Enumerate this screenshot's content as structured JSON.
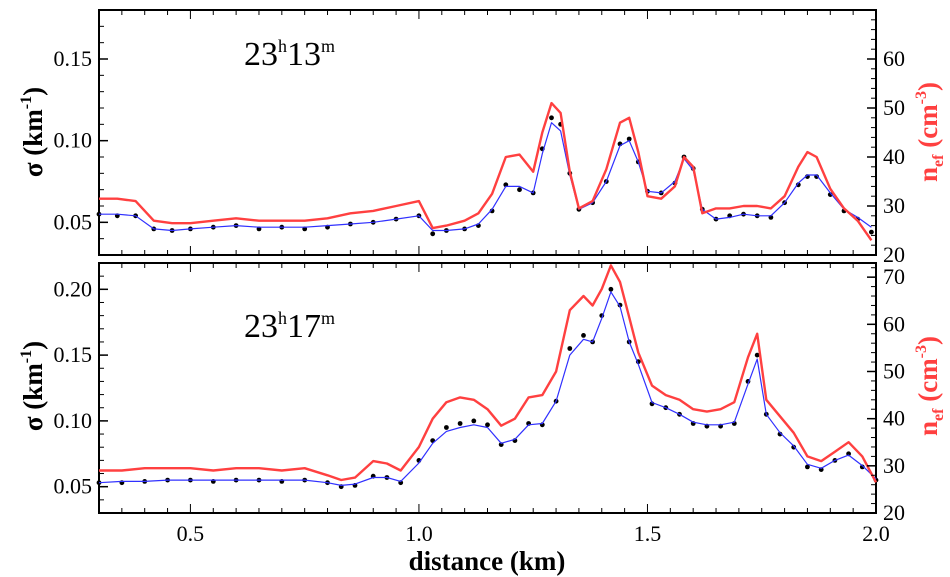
{
  "chart_data": [
    {
      "type": "line",
      "panel": "top",
      "annotation": {
        "hours": "23",
        "h": "h",
        "minutes": "13",
        "m": "m"
      },
      "xlim": [
        0.3,
        2.0
      ],
      "ylim_left": [
        0.03,
        0.18
      ],
      "ylim_right": [
        20,
        70
      ],
      "left_ticks": [
        "0.05",
        "0.10",
        "0.15"
      ],
      "right_ticks": [
        "20",
        "30",
        "40",
        "50",
        "60"
      ],
      "ylabel_left": {
        "symbol": "σ",
        "unit": "(km",
        "exp": "-1",
        "close": ")"
      },
      "ylabel_right": {
        "symbol": "n",
        "sub": "ef",
        "unit": "(cm",
        "exp": "-3",
        "close": ")"
      },
      "series": [
        {
          "role": "points",
          "color": "#000000",
          "x": [
            0.3,
            0.34,
            0.38,
            0.42,
            0.46,
            0.5,
            0.55,
            0.6,
            0.65,
            0.7,
            0.75,
            0.8,
            0.85,
            0.9,
            0.95,
            1.0,
            1.03,
            1.06,
            1.1,
            1.13,
            1.16,
            1.19,
            1.22,
            1.25,
            1.27,
            1.29,
            1.31,
            1.33,
            1.35,
            1.38,
            1.41,
            1.44,
            1.46,
            1.48,
            1.5,
            1.53,
            1.56,
            1.58,
            1.6,
            1.62,
            1.65,
            1.68,
            1.71,
            1.74,
            1.77,
            1.8,
            1.83,
            1.85,
            1.87,
            1.9,
            1.93,
            1.96,
            1.99
          ],
          "y": [
            0.055,
            0.054,
            0.054,
            0.046,
            0.045,
            0.046,
            0.047,
            0.048,
            0.046,
            0.047,
            0.046,
            0.047,
            0.049,
            0.05,
            0.052,
            0.054,
            0.043,
            0.045,
            0.046,
            0.048,
            0.057,
            0.073,
            0.07,
            0.068,
            0.095,
            0.114,
            0.11,
            0.08,
            0.058,
            0.062,
            0.075,
            0.098,
            0.101,
            0.087,
            0.069,
            0.068,
            0.074,
            0.09,
            0.083,
            0.058,
            0.052,
            0.054,
            0.055,
            0.054,
            0.053,
            0.062,
            0.073,
            0.078,
            0.078,
            0.067,
            0.057,
            0.052,
            0.044
          ]
        },
        {
          "role": "blue-fit",
          "color": "#3030ff",
          "x": [
            0.3,
            0.34,
            0.38,
            0.42,
            0.46,
            0.5,
            0.55,
            0.6,
            0.65,
            0.7,
            0.75,
            0.8,
            0.85,
            0.9,
            0.95,
            1.0,
            1.03,
            1.06,
            1.1,
            1.13,
            1.16,
            1.19,
            1.22,
            1.25,
            1.27,
            1.29,
            1.31,
            1.33,
            1.35,
            1.38,
            1.41,
            1.44,
            1.46,
            1.48,
            1.5,
            1.53,
            1.56,
            1.58,
            1.6,
            1.62,
            1.65,
            1.68,
            1.71,
            1.74,
            1.77,
            1.8,
            1.83,
            1.85,
            1.87,
            1.9,
            1.93,
            1.96,
            1.99
          ],
          "y": [
            0.055,
            0.055,
            0.054,
            0.046,
            0.045,
            0.046,
            0.047,
            0.048,
            0.047,
            0.047,
            0.047,
            0.048,
            0.049,
            0.05,
            0.052,
            0.054,
            0.045,
            0.045,
            0.046,
            0.049,
            0.058,
            0.072,
            0.072,
            0.068,
            0.092,
            0.111,
            0.106,
            0.079,
            0.058,
            0.062,
            0.075,
            0.097,
            0.1,
            0.087,
            0.069,
            0.068,
            0.075,
            0.089,
            0.082,
            0.058,
            0.052,
            0.053,
            0.055,
            0.054,
            0.054,
            0.062,
            0.074,
            0.079,
            0.079,
            0.068,
            0.058,
            0.053,
            0.047
          ]
        },
        {
          "role": "red-density",
          "color": "#ff4040",
          "axis": "right",
          "x": [
            0.3,
            0.34,
            0.38,
            0.42,
            0.46,
            0.5,
            0.55,
            0.6,
            0.65,
            0.7,
            0.75,
            0.8,
            0.85,
            0.9,
            0.95,
            1.0,
            1.03,
            1.06,
            1.1,
            1.13,
            1.16,
            1.19,
            1.22,
            1.25,
            1.27,
            1.29,
            1.31,
            1.33,
            1.35,
            1.38,
            1.41,
            1.44,
            1.46,
            1.48,
            1.5,
            1.53,
            1.56,
            1.58,
            1.6,
            1.62,
            1.65,
            1.68,
            1.71,
            1.74,
            1.77,
            1.8,
            1.83,
            1.85,
            1.87,
            1.9,
            1.93,
            1.96,
            1.99
          ],
          "y": [
            31.5,
            31.5,
            31.0,
            27.0,
            26.5,
            26.5,
            27.0,
            27.5,
            27.0,
            27.0,
            27.0,
            27.5,
            28.5,
            29.0,
            30.0,
            31.0,
            25.5,
            26.0,
            27.0,
            28.5,
            32.5,
            40.0,
            40.5,
            37.0,
            45.0,
            51.0,
            49.0,
            37.0,
            29.5,
            31.0,
            37.5,
            47.0,
            48.0,
            41.0,
            32.0,
            31.5,
            34.0,
            40.0,
            38.0,
            28.5,
            29.5,
            29.5,
            30.0,
            30.0,
            29.5,
            32.0,
            38.0,
            41.0,
            40.0,
            33.5,
            29.5,
            27.0,
            23.0
          ]
        }
      ]
    },
    {
      "type": "line",
      "panel": "bottom",
      "annotation": {
        "hours": "23",
        "h": "h",
        "minutes": "17",
        "m": "m"
      },
      "xlim": [
        0.3,
        2.0
      ],
      "ylim_left": [
        0.03,
        0.22
      ],
      "ylim_right": [
        20,
        73
      ],
      "left_ticks": [
        "0.05",
        "0.10",
        "0.15",
        "0.20"
      ],
      "right_ticks": [
        "20",
        "30",
        "40",
        "50",
        "60",
        "70"
      ],
      "x_ticks": [
        "0.5",
        "1.0",
        "1.5",
        "2.0"
      ],
      "xlabel": "distance (km)",
      "ylabel_left": {
        "symbol": "σ",
        "unit": "(km",
        "exp": "-1",
        "close": ")"
      },
      "ylabel_right": {
        "symbol": "n",
        "sub": "ef",
        "unit": "(cm",
        "exp": "-3",
        "close": ")"
      },
      "series": [
        {
          "role": "points",
          "color": "#000000",
          "x": [
            0.3,
            0.35,
            0.4,
            0.45,
            0.5,
            0.55,
            0.6,
            0.65,
            0.7,
            0.75,
            0.8,
            0.83,
            0.86,
            0.9,
            0.93,
            0.96,
            1.0,
            1.03,
            1.06,
            1.09,
            1.12,
            1.15,
            1.18,
            1.21,
            1.24,
            1.27,
            1.3,
            1.33,
            1.36,
            1.38,
            1.4,
            1.42,
            1.44,
            1.46,
            1.48,
            1.51,
            1.54,
            1.57,
            1.6,
            1.63,
            1.66,
            1.69,
            1.72,
            1.74,
            1.76,
            1.79,
            1.82,
            1.85,
            1.88,
            1.91,
            1.94,
            1.97,
            2.0
          ],
          "y": [
            0.053,
            0.053,
            0.054,
            0.055,
            0.055,
            0.054,
            0.055,
            0.055,
            0.054,
            0.055,
            0.053,
            0.05,
            0.051,
            0.058,
            0.057,
            0.053,
            0.07,
            0.085,
            0.095,
            0.098,
            0.1,
            0.097,
            0.082,
            0.085,
            0.098,
            0.097,
            0.115,
            0.155,
            0.165,
            0.16,
            0.18,
            0.2,
            0.188,
            0.16,
            0.145,
            0.113,
            0.11,
            0.105,
            0.098,
            0.096,
            0.096,
            0.098,
            0.13,
            0.15,
            0.105,
            0.09,
            0.08,
            0.065,
            0.063,
            0.07,
            0.075,
            0.065,
            0.055
          ]
        },
        {
          "role": "blue-fit",
          "color": "#3030ff",
          "x": [
            0.3,
            0.35,
            0.4,
            0.45,
            0.5,
            0.55,
            0.6,
            0.65,
            0.7,
            0.75,
            0.8,
            0.83,
            0.86,
            0.9,
            0.93,
            0.96,
            1.0,
            1.03,
            1.06,
            1.09,
            1.12,
            1.15,
            1.18,
            1.21,
            1.24,
            1.27,
            1.3,
            1.33,
            1.36,
            1.38,
            1.4,
            1.42,
            1.44,
            1.46,
            1.48,
            1.51,
            1.54,
            1.57,
            1.6,
            1.63,
            1.66,
            1.69,
            1.72,
            1.74,
            1.76,
            1.79,
            1.82,
            1.85,
            1.88,
            1.91,
            1.94,
            1.97,
            2.0
          ],
          "y": [
            0.053,
            0.054,
            0.054,
            0.055,
            0.055,
            0.055,
            0.055,
            0.055,
            0.055,
            0.055,
            0.053,
            0.051,
            0.052,
            0.057,
            0.057,
            0.054,
            0.068,
            0.083,
            0.092,
            0.095,
            0.097,
            0.095,
            0.083,
            0.086,
            0.097,
            0.098,
            0.115,
            0.15,
            0.162,
            0.16,
            0.178,
            0.198,
            0.187,
            0.16,
            0.143,
            0.114,
            0.11,
            0.105,
            0.099,
            0.097,
            0.097,
            0.099,
            0.128,
            0.147,
            0.105,
            0.091,
            0.081,
            0.067,
            0.064,
            0.07,
            0.074,
            0.066,
            0.056
          ]
        },
        {
          "role": "red-density",
          "color": "#ff4040",
          "axis": "right",
          "x": [
            0.3,
            0.35,
            0.4,
            0.45,
            0.5,
            0.55,
            0.6,
            0.65,
            0.7,
            0.75,
            0.8,
            0.83,
            0.86,
            0.9,
            0.93,
            0.96,
            1.0,
            1.03,
            1.06,
            1.09,
            1.12,
            1.15,
            1.18,
            1.21,
            1.24,
            1.27,
            1.3,
            1.33,
            1.36,
            1.38,
            1.4,
            1.42,
            1.44,
            1.46,
            1.48,
            1.51,
            1.54,
            1.57,
            1.6,
            1.63,
            1.66,
            1.69,
            1.72,
            1.74,
            1.76,
            1.79,
            1.82,
            1.85,
            1.88,
            1.91,
            1.94,
            1.97,
            2.0
          ],
          "y": [
            29.0,
            29.0,
            29.5,
            29.5,
            29.5,
            29.0,
            29.5,
            29.5,
            29.0,
            29.5,
            28.0,
            27.0,
            27.5,
            31.0,
            30.5,
            29.0,
            34.0,
            40.0,
            43.5,
            44.5,
            44.0,
            42.0,
            38.5,
            40.0,
            44.5,
            45.0,
            50.0,
            63.0,
            66.0,
            64.0,
            67.5,
            72.5,
            69.0,
            61.5,
            54.0,
            47.0,
            45.0,
            44.0,
            42.0,
            41.5,
            42.0,
            43.5,
            53.0,
            58.0,
            44.0,
            40.5,
            37.0,
            32.0,
            31.0,
            33.0,
            35.0,
            32.0,
            26.5
          ]
        }
      ]
    }
  ]
}
